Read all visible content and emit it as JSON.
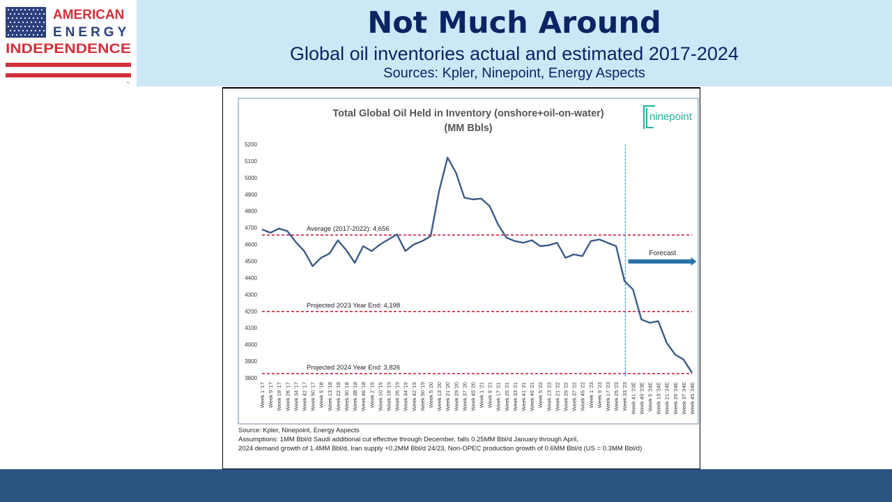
{
  "logo": {
    "line1": "AMERICAN",
    "line2": "ENERGY",
    "line3": "INDEPENDENCE",
    "tm": "™"
  },
  "slide": {
    "title": "Not Much Around",
    "subtitle": "Global oil inventories actual and estimated 2017-2024",
    "sources": "Sources: Kpler, Ninepoint, Energy Aspects"
  },
  "brand": {
    "name": "ninepoint"
  },
  "colors": {
    "line": "#3b5a86",
    "dashed_red": "#c8102e",
    "forecast_blue": "#1fa0d8",
    "header_band": "#cce8f7",
    "bottom_band": "#2a5582",
    "title_navy": "#0b2463"
  },
  "chart_data": {
    "type": "line",
    "title": "Total Global Oil Held in Inventory (onshore+oil-on-water)",
    "subtitle": "(MM Bbls)",
    "ylim": [
      3800,
      5200
    ],
    "yticks": [
      3800,
      3900,
      4000,
      4100,
      4200,
      4300,
      4400,
      4500,
      4600,
      4700,
      4800,
      4900,
      5000,
      5100,
      5200
    ],
    "categories": [
      "Week 1 '17",
      "Week 9 '17",
      "Week 18 '17",
      "Week 26 '17",
      "Week 34 '17",
      "Week 42 '17",
      "Week 50 '17",
      "Week 5 '18",
      "Week 13 '18",
      "Week 22 '18",
      "Week 30 '18",
      "Week 38 '18",
      "Week 46 '18",
      "Week 2 '19",
      "Week 10 '19",
      "Week 18 '19",
      "Week 26 '19",
      "Week 34 '19",
      "Week 42 '19",
      "Week 50 '19",
      "Week 5 '20",
      "Week 13 '20",
      "Week 21 '20",
      "Week 29 '20",
      "Week 37 '20",
      "Week 45 '20",
      "Week 1 '21",
      "Week 9 '21",
      "Week 17 '21",
      "Week 25 '21",
      "Week 33 '21",
      "Week 41 '21",
      "Week 49 '21",
      "Week 5 '22",
      "Week 13 '22",
      "Week 21 '22",
      "Week 29 '22",
      "Week 37 '22",
      "Week 45 '22",
      "Week 1 '23",
      "Week 9 '23",
      "Week 17 '23",
      "Week 25 '23",
      "Week 33 '23",
      "Week 41 '23E",
      "Week 49 '23E",
      "Week 5 '24E",
      "Week 13 '24E",
      "Week 21 '24E",
      "Week 29 '24E",
      "Week 37 '24E",
      "Week 45 '24E"
    ],
    "series": [
      {
        "values": [
          4690,
          4670,
          4695,
          4680,
          4615,
          4560,
          4470,
          4520,
          4545,
          4625,
          4565,
          4490,
          4590,
          4560,
          4600,
          4630,
          4660,
          4560,
          4600,
          4620,
          4650,
          4920,
          5120,
          5030,
          4880,
          4870,
          4875,
          4830,
          4720,
          4640,
          4620,
          4610,
          4625,
          4590,
          4595,
          4610,
          4520,
          4540,
          4530,
          4620,
          4630,
          4610,
          4590,
          4380,
          4330,
          4150,
          4130,
          4140,
          4010,
          3940,
          3910,
          3830
        ]
      }
    ],
    "reference_lines": [
      {
        "label": "Average (2017-2022): 4,656",
        "value": 4656
      },
      {
        "label": "Projected 2023 Year End: 4,198",
        "value": 4198
      },
      {
        "label": "Projected 2024 Year End: 3,826",
        "value": 3826
      }
    ],
    "forecast_label": "Forecast",
    "forecast_start_category": "Week 41 '23E"
  },
  "notes": {
    "source": "Source: Kpler, Ninepoint, Energy Aspects",
    "assumptions_line1": "Assumptions: 1MM Bbl/d Saudi additional cut effective through December, falls 0.25MM Bbl/d January through April,",
    "assumptions_line2": "2024 demand growth of 1.4MM Bbl/d, Iran supply +0.2MM Bbl/d 24/23, Non-OPEC production growth of 0.6MM Bbl/d (US = 0.3MM Bbl/d)"
  }
}
